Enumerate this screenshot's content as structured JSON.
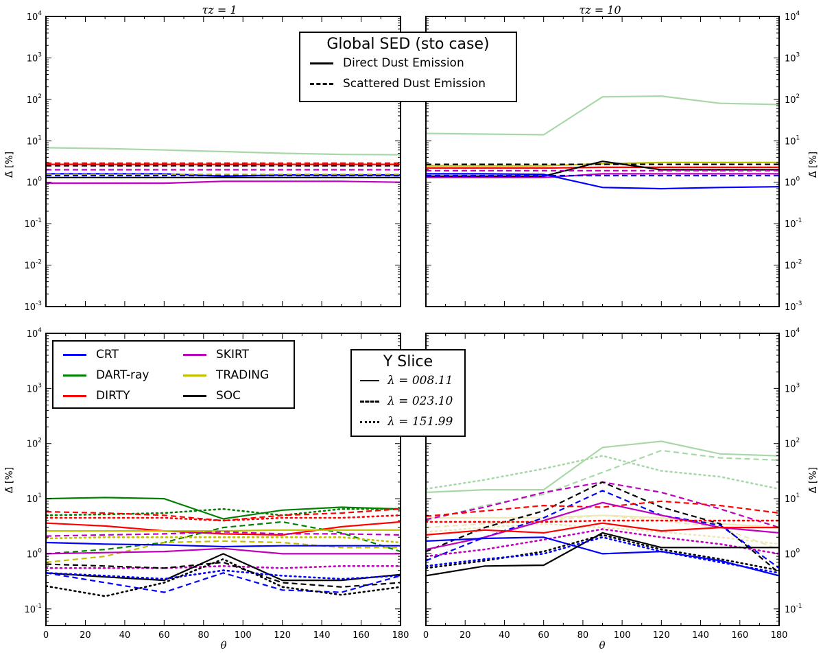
{
  "figure": {
    "top_row_title": "Global SED (sto case)",
    "bottom_row_title": "Y Slice",
    "ylabel": "Δ̄ [%]",
    "xlabel": "θ",
    "panel_titles": [
      "τz = 1",
      "τz = 10"
    ]
  },
  "linestyle_legend_top": [
    {
      "label": "Direct Dust Emission",
      "style": "solid"
    },
    {
      "label": "Scattered Dust Emission",
      "style": "dashed"
    }
  ],
  "linestyle_legend_bottom": [
    {
      "label": "λ = 008.11",
      "style": "solid"
    },
    {
      "label": "λ = 023.10",
      "style": "dashed"
    },
    {
      "label": "λ = 151.99",
      "style": "dotted"
    }
  ],
  "code_legend": [
    {
      "label": "CRT",
      "color": "#0000ff"
    },
    {
      "label": "DART-ray",
      "color": "#008000"
    },
    {
      "label": "DIRTY",
      "color": "#ff0000"
    },
    {
      "label": "SKIRT",
      "color": "#bf00bf"
    },
    {
      "label": "TRADING",
      "color": "#bfbf00"
    },
    {
      "label": "SOC",
      "color": "#000000"
    }
  ],
  "chart_data": [
    {
      "type": "line",
      "panel": "top-left",
      "title": "τz = 1",
      "xlabel": "",
      "ylabel": "Δ̄ [%]",
      "xlim": [
        0,
        180
      ],
      "ylim": [
        0.001,
        10000
      ],
      "yscale": "log",
      "x": [
        0,
        30,
        60,
        90,
        120,
        150,
        180
      ],
      "series": [
        {
          "name": "DART-ray direct",
          "color": "#a8d8a8",
          "style": "solid",
          "values": [
            6.8,
            6.5,
            6.0,
            5.5,
            5.0,
            4.7,
            4.6
          ]
        },
        {
          "name": "DIRTY scattered",
          "color": "#ff0000",
          "style": "dashed",
          "values": [
            2.9,
            2.9,
            2.9,
            2.9,
            2.9,
            2.9,
            2.9
          ]
        },
        {
          "name": "DIRTY direct",
          "color": "#ff0000",
          "style": "solid",
          "values": [
            2.7,
            2.7,
            2.7,
            2.7,
            2.7,
            2.7,
            2.7
          ]
        },
        {
          "name": "SOC scattered",
          "color": "#000000",
          "style": "dashed",
          "values": [
            2.5,
            2.5,
            2.5,
            2.5,
            2.5,
            2.5,
            2.5
          ]
        },
        {
          "name": "SKIRT scattered",
          "color": "#bf00bf",
          "style": "dashed",
          "values": [
            2.0,
            2.0,
            2.0,
            2.0,
            2.0,
            2.0,
            2.0
          ]
        },
        {
          "name": "CRT direct",
          "color": "#0000ff",
          "style": "solid",
          "values": [
            1.6,
            1.6,
            1.6,
            1.4,
            1.5,
            1.5,
            1.5
          ]
        },
        {
          "name": "TRADING scattered",
          "color": "#bfbf00",
          "style": "dashed",
          "values": [
            1.55,
            1.55,
            1.55,
            1.55,
            1.55,
            1.55,
            1.55
          ]
        },
        {
          "name": "CRT scattered",
          "color": "#0000ff",
          "style": "dashed",
          "values": [
            1.45,
            1.45,
            1.45,
            1.45,
            1.45,
            1.45,
            1.45
          ]
        },
        {
          "name": "SOC direct",
          "color": "#000000",
          "style": "solid",
          "values": [
            1.3,
            1.3,
            1.3,
            1.3,
            1.3,
            1.3,
            1.3
          ]
        },
        {
          "name": "SKIRT direct",
          "color": "#bf00bf",
          "style": "solid",
          "values": [
            0.95,
            0.95,
            0.95,
            1.05,
            1.05,
            1.05,
            1.0
          ]
        }
      ]
    },
    {
      "type": "line",
      "panel": "top-right",
      "title": "τz = 10",
      "xlabel": "",
      "ylabel": "Δ̄ [%]",
      "xlim": [
        0,
        180
      ],
      "ylim": [
        0.001,
        10000
      ],
      "yscale": "log",
      "x": [
        0,
        30,
        60,
        90,
        120,
        150,
        180
      ],
      "series": [
        {
          "name": "DART-ray direct",
          "color": "#a8d8a8",
          "style": "solid",
          "values": [
            15,
            14.5,
            14,
            115,
            120,
            80,
            75
          ]
        },
        {
          "name": "TRADING direct",
          "color": "#bfbf00",
          "style": "solid",
          "values": [
            2.5,
            2.5,
            2.5,
            2.8,
            3.0,
            3.0,
            3.0
          ]
        },
        {
          "name": "SOC scattered",
          "color": "#000000",
          "style": "dashed",
          "values": [
            2.7,
            2.7,
            2.7,
            2.7,
            2.7,
            2.7,
            2.7
          ]
        },
        {
          "name": "DIRTY direct",
          "color": "#ff0000",
          "style": "solid",
          "values": [
            2.2,
            2.2,
            2.2,
            2.3,
            2.3,
            2.3,
            2.3
          ]
        },
        {
          "name": "SOC direct",
          "color": "#000000",
          "style": "solid",
          "values": [
            1.4,
            1.4,
            1.4,
            3.2,
            2.0,
            2.0,
            2.0
          ]
        },
        {
          "name": "SKIRT scattered",
          "color": "#bf00bf",
          "style": "dashed",
          "values": [
            1.9,
            1.9,
            1.9,
            1.9,
            1.9,
            1.9,
            1.9
          ]
        },
        {
          "name": "SKIRT direct",
          "color": "#bf00bf",
          "style": "solid",
          "values": [
            1.3,
            1.3,
            1.3,
            1.6,
            1.6,
            1.6,
            1.6
          ]
        },
        {
          "name": "CRT scattered",
          "color": "#0000ff",
          "style": "dashed",
          "values": [
            1.45,
            1.45,
            1.45,
            1.45,
            1.45,
            1.45,
            1.45
          ]
        },
        {
          "name": "CRT direct",
          "color": "#0000ff",
          "style": "solid",
          "values": [
            1.6,
            1.6,
            1.55,
            0.75,
            0.7,
            0.75,
            0.78
          ]
        }
      ]
    },
    {
      "type": "line",
      "panel": "bottom-left",
      "title": "",
      "xlabel": "θ",
      "ylabel": "Δ̄ [%]",
      "xlim": [
        0,
        180
      ],
      "ylim": [
        0.05,
        10000
      ],
      "yscale": "log",
      "x": [
        0,
        30,
        60,
        90,
        120,
        150,
        180
      ],
      "series": [
        {
          "name": "DART-ray λ008",
          "color": "#008000",
          "style": "solid",
          "values": [
            10,
            10.5,
            10,
            4.3,
            6.2,
            7.0,
            6.5
          ]
        },
        {
          "name": "DART-ray λ151",
          "color": "#008000",
          "style": "dotted",
          "values": [
            5.0,
            5.2,
            5.5,
            6.5,
            5.0,
            6.5,
            6.5
          ]
        },
        {
          "name": "DIRTY λ023",
          "color": "#ff0000",
          "style": "dashed",
          "values": [
            5.8,
            5.5,
            5.0,
            4.0,
            5.0,
            5.5,
            6.5
          ]
        },
        {
          "name": "DIRTY λ151",
          "color": "#ff0000",
          "style": "dotted",
          "values": [
            4.5,
            4.5,
            4.5,
            4.0,
            4.5,
            4.5,
            5.0
          ]
        },
        {
          "name": "DIRTY λ008",
          "color": "#ff0000",
          "style": "solid",
          "values": [
            3.6,
            3.2,
            2.6,
            2.3,
            2.2,
            3.1,
            3.8
          ]
        },
        {
          "name": "DART-ray λ023",
          "color": "#008000",
          "style": "dashed",
          "values": [
            1.0,
            1.2,
            1.6,
            3.0,
            3.8,
            2.4,
            1.1
          ]
        },
        {
          "name": "TRADING λ008",
          "color": "#bfbf00",
          "style": "solid",
          "values": [
            2.6,
            2.6,
            2.6,
            2.6,
            2.7,
            2.7,
            2.7
          ]
        },
        {
          "name": "SKIRT λ023",
          "color": "#bf00bf",
          "style": "dashed",
          "values": [
            2.1,
            2.2,
            2.3,
            2.5,
            2.3,
            2.3,
            2.2
          ]
        },
        {
          "name": "TRADING λ151",
          "color": "#bfbf00",
          "style": "dotted",
          "values": [
            1.9,
            2.0,
            2.0,
            2.0,
            2.0,
            2.0,
            1.6
          ]
        },
        {
          "name": "TRADING λ023",
          "color": "#bfbf00",
          "style": "dashed",
          "values": [
            0.7,
            0.9,
            1.6,
            1.7,
            1.6,
            1.3,
            1.3
          ]
        },
        {
          "name": "CRT λ008",
          "color": "#0000ff",
          "style": "solid",
          "values": [
            1.6,
            1.5,
            1.45,
            1.35,
            1.4,
            1.4,
            1.4
          ]
        },
        {
          "name": "SKIRT λ008",
          "color": "#bf00bf",
          "style": "solid",
          "values": [
            1.0,
            1.05,
            1.1,
            1.25,
            1.0,
            1.0,
            1.0
          ]
        },
        {
          "name": "SKIRT λ151",
          "color": "#bf00bf",
          "style": "dotted",
          "values": [
            0.55,
            0.55,
            0.55,
            0.6,
            0.55,
            0.6,
            0.6
          ]
        },
        {
          "name": "SOC λ023",
          "color": "#000000",
          "style": "dashed",
          "values": [
            0.65,
            0.6,
            0.55,
            0.7,
            0.3,
            0.25,
            0.3
          ]
        },
        {
          "name": "SOC λ008",
          "color": "#000000",
          "style": "solid",
          "values": [
            0.45,
            0.38,
            0.33,
            1.0,
            0.33,
            0.33,
            0.42
          ]
        },
        {
          "name": "CRT λ151",
          "color": "#0000ff",
          "style": "dotted",
          "values": [
            0.45,
            0.4,
            0.35,
            0.5,
            0.4,
            0.35,
            0.4
          ]
        },
        {
          "name": "CRT λ023",
          "color": "#0000ff",
          "style": "dashed",
          "values": [
            0.45,
            0.3,
            0.2,
            0.45,
            0.22,
            0.2,
            0.4
          ]
        },
        {
          "name": "SOC λ151",
          "color": "#000000",
          "style": "dotted",
          "values": [
            0.26,
            0.17,
            0.3,
            0.8,
            0.25,
            0.18,
            0.25
          ]
        }
      ]
    },
    {
      "type": "line",
      "panel": "bottom-right",
      "title": "",
      "xlabel": "θ",
      "ylabel": "Δ̄ [%]",
      "xlim": [
        0,
        180
      ],
      "ylim": [
        0.05,
        10000
      ],
      "yscale": "log",
      "x": [
        0,
        30,
        60,
        90,
        120,
        150,
        180
      ],
      "series": [
        {
          "name": "DART-ray λ008",
          "color": "#a8d8a8",
          "style": "solid",
          "values": [
            13,
            14.5,
            14.5,
            85,
            110,
            65,
            60
          ]
        },
        {
          "name": "DART-ray λ023",
          "color": "#a8d8a8",
          "style": "dashed",
          "values": [
            4.0,
            7.5,
            12,
            30,
            75,
            55,
            50
          ]
        },
        {
          "name": "DART-ray λ151",
          "color": "#a8d8a8",
          "style": "dotted",
          "values": [
            15,
            22,
            35,
            60,
            32,
            25,
            15
          ]
        },
        {
          "name": "TRADING λ008",
          "color": "#ede8b8",
          "style": "solid",
          "values": [
            4.5,
            4.5,
            4.5,
            5.0,
            4.5,
            3.5,
            3.0
          ]
        },
        {
          "name": "TRADING λ023",
          "color": "#ede8b8",
          "style": "dashed",
          "values": [
            3.0,
            3.5,
            4.0,
            5.0,
            4.0,
            3.0,
            1.2
          ]
        },
        {
          "name": "TRADING λ151",
          "color": "#ede8b8",
          "style": "dotted",
          "values": [
            2.5,
            3.0,
            3.5,
            3.0,
            2.5,
            2.0,
            1.5
          ]
        },
        {
          "name": "SKIRT λ023",
          "color": "#bf00bf",
          "style": "dashed",
          "values": [
            4.2,
            7.0,
            13,
            20,
            13,
            6.5,
            3.0
          ]
        },
        {
          "name": "SOC λ023",
          "color": "#000000",
          "style": "dashed",
          "values": [
            1.1,
            3.0,
            6.0,
            20,
            7.0,
            3.5,
            0.45
          ]
        },
        {
          "name": "CRT λ023",
          "color": "#0000ff",
          "style": "dashed",
          "values": [
            0.75,
            2.0,
            4.5,
            14,
            5.0,
            3.3,
            0.55
          ]
        },
        {
          "name": "DIRTY λ023",
          "color": "#ff0000",
          "style": "dashed",
          "values": [
            4.8,
            6.0,
            7.5,
            7.0,
            9.0,
            7.5,
            5.5
          ]
        },
        {
          "name": "SKIRT λ008",
          "color": "#bf00bf",
          "style": "solid",
          "values": [
            1.2,
            2.0,
            4.0,
            8.5,
            5.0,
            3.0,
            2.4
          ]
        },
        {
          "name": "DIRTY λ151",
          "color": "#ff0000",
          "style": "dotted",
          "values": [
            3.8,
            3.8,
            3.8,
            4.0,
            4.0,
            4.0,
            4.0
          ]
        },
        {
          "name": "DIRTY λ008",
          "color": "#ff0000",
          "style": "solid",
          "values": [
            2.2,
            2.7,
            2.4,
            3.6,
            2.6,
            3.0,
            3.0
          ]
        },
        {
          "name": "SKIRT λ151",
          "color": "#bf00bf",
          "style": "dotted",
          "values": [
            0.9,
            1.2,
            1.8,
            2.8,
            2.0,
            1.5,
            1.0
          ]
        },
        {
          "name": "CRT λ008",
          "color": "#0000ff",
          "style": "solid",
          "values": [
            1.7,
            1.9,
            2.0,
            1.0,
            1.1,
            0.75,
            0.4
          ]
        },
        {
          "name": "SOC λ008",
          "color": "#000000",
          "style": "solid",
          "values": [
            0.4,
            0.6,
            0.62,
            2.4,
            1.3,
            1.3,
            1.3
          ]
        },
        {
          "name": "SOC λ151",
          "color": "#000000",
          "style": "dotted",
          "values": [
            0.55,
            0.75,
            1.1,
            2.2,
            1.2,
            0.8,
            0.5
          ]
        },
        {
          "name": "CRT λ151",
          "color": "#0000ff",
          "style": "dotted",
          "values": [
            0.6,
            0.8,
            1.0,
            2.0,
            1.1,
            0.7,
            0.45
          ]
        }
      ]
    }
  ]
}
